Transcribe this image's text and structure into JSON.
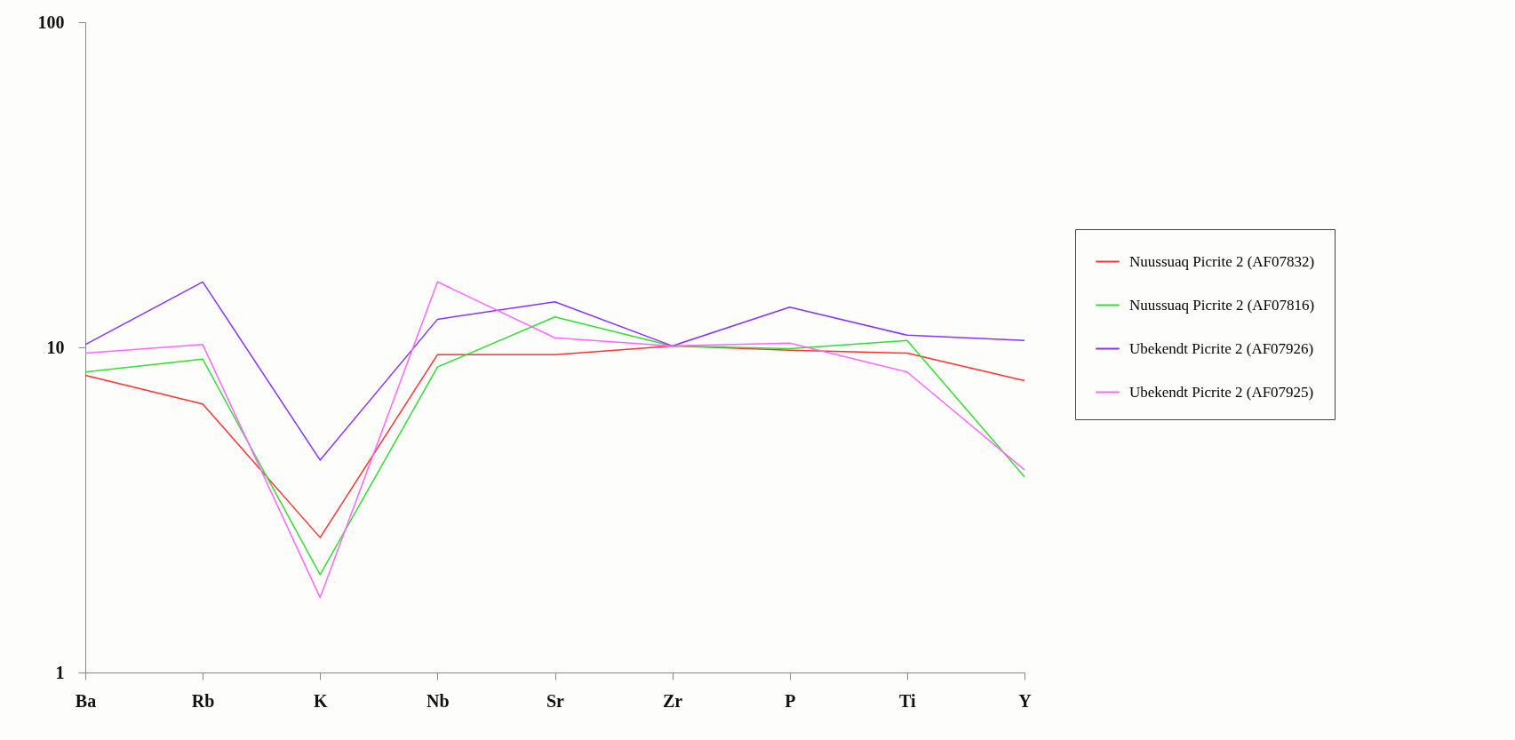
{
  "chart_data": {
    "type": "line",
    "categories": [
      "Ba",
      "Rb",
      "K",
      "Nb",
      "Sr",
      "Zr",
      "P",
      "Ti",
      "Y"
    ],
    "series": [
      {
        "name": "Nuussuaq Picrite 2 (AF07832)",
        "color": "#ff3333",
        "values": [
          8.2,
          6.7,
          2.6,
          9.5,
          9.5,
          10.1,
          9.8,
          9.6,
          7.9
        ]
      },
      {
        "name": "Nuussuaq Picrite 2 (AF07816)",
        "color": "#33dd33",
        "values": [
          8.4,
          9.2,
          2.0,
          8.7,
          12.4,
          10.1,
          9.9,
          10.5,
          4.0
        ]
      },
      {
        "name": "Ubekendt Picrite 2 (AF07926)",
        "color": "#8833ff",
        "values": [
          10.2,
          15.9,
          4.5,
          12.2,
          13.8,
          10.1,
          13.3,
          10.9,
          10.5
        ]
      },
      {
        "name": "Ubekendt Picrite 2 (AF07925)",
        "color": "#ff66ff",
        "values": [
          9.6,
          10.2,
          1.7,
          15.9,
          10.7,
          10.1,
          10.3,
          8.4,
          4.2
        ]
      }
    ],
    "log": true,
    "ylim": [
      1,
      100
    ],
    "yticks": [
      1,
      10,
      100
    ],
    "grid": false,
    "legend": "right",
    "marker": "none",
    "line_style": "solid"
  }
}
